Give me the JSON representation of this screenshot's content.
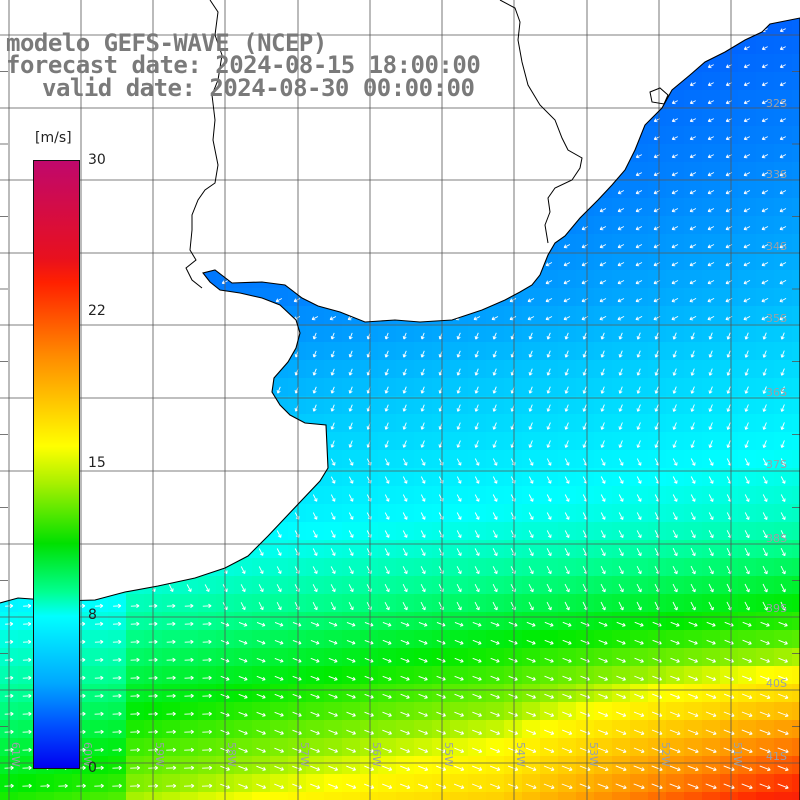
{
  "title": {
    "line1": "modelo GEFS-WAVE (NCEP)",
    "line2": "forecast date: 2024-08-15 18:00:00",
    "line3": "valid date: 2024-08-30 00:00:00"
  },
  "colorbar": {
    "unit": "[m/s]",
    "ticks": [
      "30",
      "22",
      "15",
      "8",
      "0"
    ],
    "min": 0,
    "max": 30
  },
  "lat_labels": [
    "32S",
    "33S",
    "34S",
    "35S",
    "36S",
    "37S",
    "38S",
    "39S",
    "40S",
    "41S"
  ],
  "lon_labels": [
    "61W",
    "60W",
    "59W",
    "58W",
    "57W",
    "56W",
    "55W",
    "54W",
    "53W",
    "52W",
    "51W"
  ],
  "colors": {
    "land": "#ffffff",
    "grid": "#555555",
    "coastline": "#000000",
    "title_text": "#7a7a7a",
    "arrow": "#ffffff"
  }
}
